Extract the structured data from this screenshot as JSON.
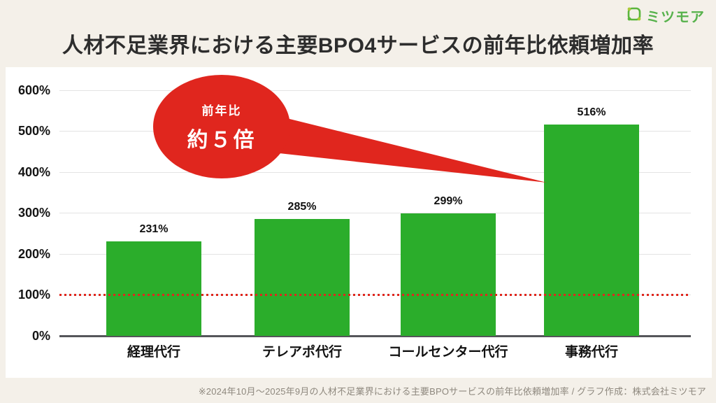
{
  "logo": {
    "text": "ミツモア",
    "icon": "mitsumoa-frame-icon",
    "text_color": "#57B24C",
    "icon_colors": {
      "frame": "#5BB53C",
      "dots": "#A9C93A"
    }
  },
  "title": "人材不足業界における主要BPO4サービスの前年比依頼増加率",
  "callout": {
    "line1": "前年比",
    "line2": "約５倍",
    "color": "#E0261E",
    "text_color": "#FFFFFF",
    "points_to": "事務代行"
  },
  "chart_data": {
    "type": "bar",
    "categories": [
      "経理代行",
      "テレアポ代行",
      "コールセンター代行",
      "事務代行"
    ],
    "values": [
      231,
      285,
      299,
      516
    ],
    "value_labels": [
      "231%",
      "285%",
      "299%",
      "516%"
    ],
    "bar_color": "#2BAD2B",
    "background": "#FFFFFF",
    "page_background": "#F4F0E9",
    "ylim": [
      0,
      600
    ],
    "ytick_interval": 100,
    "ytick_labels": [
      "0%",
      "100%",
      "200%",
      "300%",
      "400%",
      "500%",
      "600%"
    ],
    "grid": "horizontal",
    "legend": "none",
    "reference_line": {
      "value": 100,
      "style": "dotted",
      "color": "#E0261E"
    },
    "title": "",
    "xlabel": "",
    "ylabel": ""
  },
  "footer": {
    "note": "※2024年10月〜2025年9月の人材不足業界における主要BPOサービスの前年比依頼増加率 / グラフ作成：株式会社ミツモア"
  }
}
